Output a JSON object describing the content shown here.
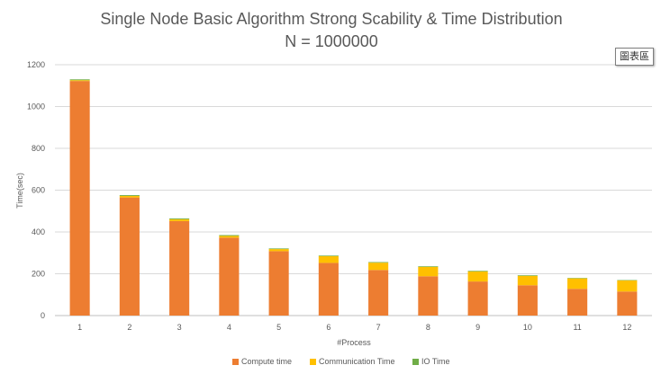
{
  "chart_data": {
    "type": "bar",
    "stacked": true,
    "title": "Single Node Basic Algorithm Strong Scability & Time Distribution",
    "subtitle": "N = 1000000",
    "xlabel": "#Process",
    "ylabel": "Time(sec)",
    "ylim": [
      0,
      1200
    ],
    "yticks": [
      0,
      200,
      400,
      600,
      800,
      1000,
      1200
    ],
    "grid": true,
    "legend": "bottom",
    "categories": [
      "1",
      "2",
      "3",
      "4",
      "5",
      "6",
      "7",
      "8",
      "9",
      "10",
      "11",
      "12"
    ],
    "series": [
      {
        "name": "Compute time",
        "color": "#ED7D31",
        "values": [
          1122,
          565,
          452,
          373,
          308,
          252,
          218,
          188,
          163,
          145,
          128,
          115
        ]
      },
      {
        "name": "Communication Time",
        "color": "#FFC000",
        "values": [
          4,
          7,
          9,
          8,
          10,
          32,
          35,
          45,
          48,
          45,
          50,
          53
        ]
      },
      {
        "name": "IO Time",
        "color": "#70AD47",
        "values": [
          4,
          4,
          4,
          4,
          3,
          3,
          3,
          3,
          3,
          3,
          2,
          2
        ]
      }
    ]
  },
  "toolbar": {
    "badge_label": "圖表區"
  }
}
